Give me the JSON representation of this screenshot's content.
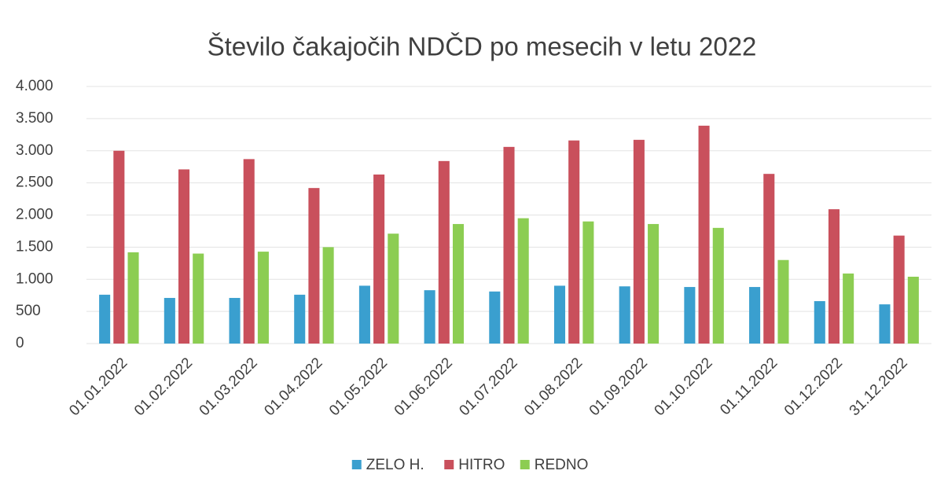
{
  "chart_data": {
    "type": "bar",
    "title": "Število čakajočih NDČD po mesecih v letu 2022",
    "categories": [
      "01.01.2022",
      "01.02.2022",
      "01.03.2022",
      "01.04.2022",
      "01.05.2022",
      "01.06.2022",
      "01.07.2022",
      "01.08.2022",
      "01.09.2022",
      "01.10.2022",
      "01.11.2022",
      "01.12.2022",
      "31.12.2022"
    ],
    "series": [
      {
        "name": "ZELO H.",
        "color": "#3a9fcf",
        "values": [
          760,
          710,
          710,
          760,
          900,
          830,
          810,
          900,
          890,
          880,
          880,
          660,
          610
        ]
      },
      {
        "name": "HITRO",
        "color": "#c9505c",
        "values": [
          3000,
          2710,
          2870,
          2420,
          2630,
          2840,
          3060,
          3160,
          3170,
          3390,
          2640,
          2090,
          1680
        ]
      },
      {
        "name": "REDNO",
        "color": "#8ccd52",
        "values": [
          1420,
          1400,
          1430,
          1500,
          1710,
          1860,
          1950,
          1900,
          1860,
          1800,
          1300,
          1090,
          1040
        ]
      }
    ],
    "ylim": [
      0,
      4000
    ],
    "yticks": [
      0,
      500,
      {
        "value": 1000,
        "label": "1.000"
      },
      {
        "value": 1500,
        "label": "1.500"
      },
      {
        "value": 2000,
        "label": "2.000"
      },
      {
        "value": 2500,
        "label": "2.500"
      },
      {
        "value": 3000,
        "label": "3.000"
      },
      {
        "value": 3500,
        "label": "3.500"
      },
      {
        "value": 4000,
        "label": "4.000"
      }
    ],
    "grid": true,
    "legend": "bottom"
  }
}
